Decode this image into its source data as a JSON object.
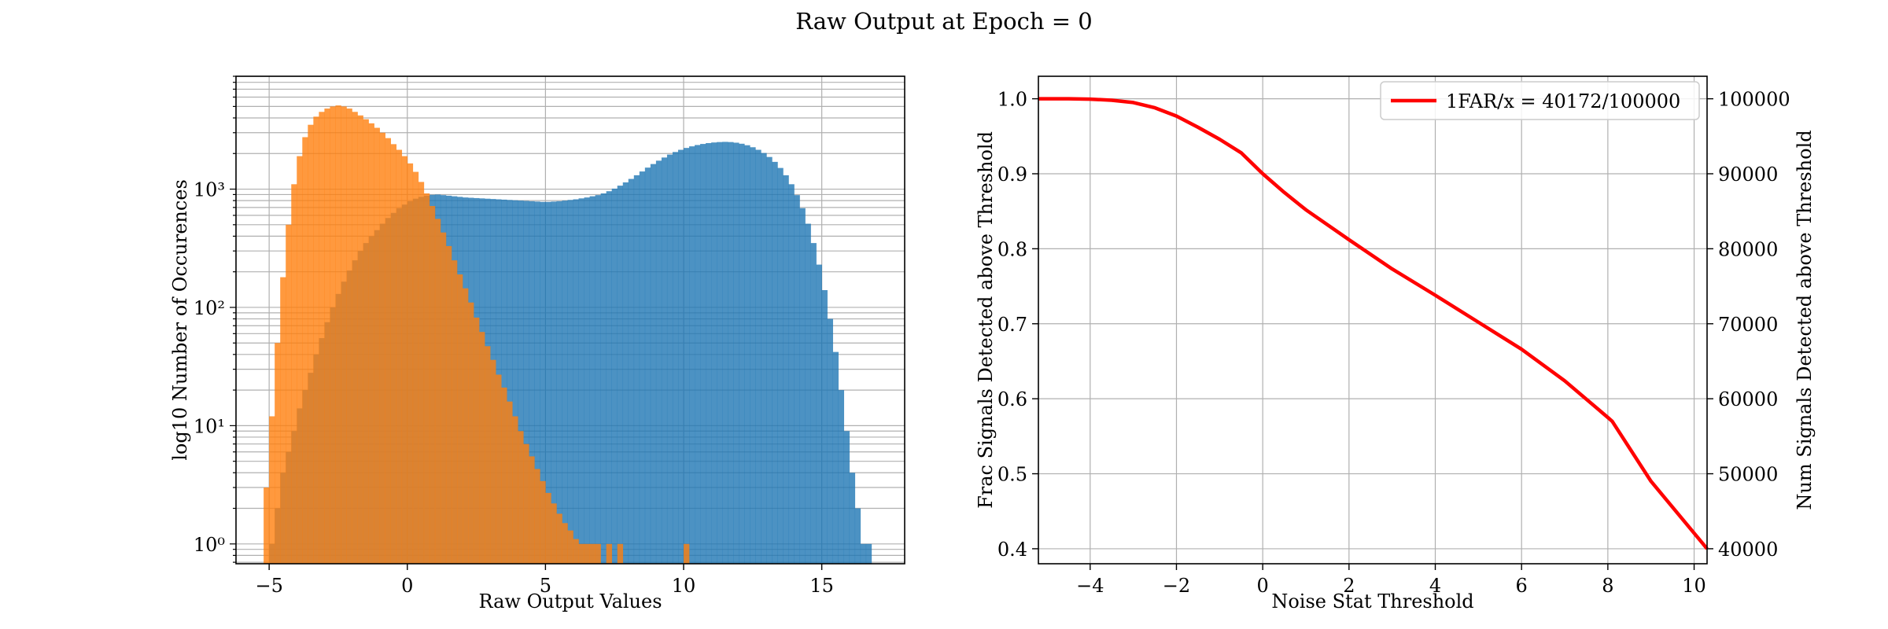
{
  "figure": {
    "title": "Raw Output at Epoch = 0"
  },
  "colors": {
    "signal": "#1f77b4",
    "noise": "#ff7f0e",
    "curve": "#ff0000",
    "grid": "#b0b0b0"
  },
  "chart_data": [
    {
      "type": "bar",
      "subtype": "histogram",
      "xlabel": "Raw Output Values",
      "ylabel": "log10 Number of Occurences",
      "xlim": [
        -6.2,
        18.0
      ],
      "ylim": [
        0.68,
        9000
      ],
      "yscale": "log",
      "grid": true,
      "x_ticks": [
        -5,
        0,
        5,
        10,
        15
      ],
      "x_tick_labels": [
        "−5",
        "0",
        "5",
        "10",
        "15"
      ],
      "y_ticks": [
        1,
        10,
        100,
        1000
      ],
      "y_tick_labels": [
        "10⁰",
        "10¹",
        "10²",
        "10³"
      ],
      "series": [
        {
          "color": "#1f77b4",
          "bin_width": 0.2,
          "bins": [
            [
              -5.0,
              1
            ],
            [
              -4.8,
              2
            ],
            [
              -4.6,
              4
            ],
            [
              -4.4,
              6
            ],
            [
              -4.2,
              9
            ],
            [
              -4.0,
              14
            ],
            [
              -3.8,
              20
            ],
            [
              -3.6,
              28
            ],
            [
              -3.4,
              40
            ],
            [
              -3.2,
              55
            ],
            [
              -3.0,
              75
            ],
            [
              -2.8,
              100
            ],
            [
              -2.6,
              130
            ],
            [
              -2.4,
              165
            ],
            [
              -2.2,
              205
            ],
            [
              -2.0,
              250
            ],
            [
              -1.8,
              300
            ],
            [
              -1.6,
              350
            ],
            [
              -1.4,
              400
            ],
            [
              -1.2,
              450
            ],
            [
              -1.0,
              510
            ],
            [
              -0.8,
              570
            ],
            [
              -0.6,
              630
            ],
            [
              -0.4,
              690
            ],
            [
              -0.2,
              740
            ],
            [
              0.0,
              790
            ],
            [
              0.2,
              830
            ],
            [
              0.4,
              860
            ],
            [
              0.6,
              880
            ],
            [
              0.8,
              895
            ],
            [
              1.0,
              900
            ],
            [
              1.2,
              890
            ],
            [
              1.4,
              880
            ],
            [
              1.6,
              870
            ],
            [
              1.8,
              860
            ],
            [
              2.0,
              850
            ],
            [
              2.2,
              845
            ],
            [
              2.4,
              840
            ],
            [
              2.6,
              835
            ],
            [
              2.8,
              830
            ],
            [
              3.0,
              825
            ],
            [
              3.2,
              820
            ],
            [
              3.4,
              815
            ],
            [
              3.6,
              810
            ],
            [
              3.8,
              805
            ],
            [
              4.0,
              800
            ],
            [
              4.2,
              795
            ],
            [
              4.4,
              790
            ],
            [
              4.6,
              785
            ],
            [
              4.8,
              780
            ],
            [
              5.0,
              780
            ],
            [
              5.2,
              785
            ],
            [
              5.4,
              790
            ],
            [
              5.6,
              800
            ],
            [
              5.8,
              810
            ],
            [
              6.0,
              820
            ],
            [
              6.2,
              835
            ],
            [
              6.4,
              850
            ],
            [
              6.6,
              870
            ],
            [
              6.8,
              890
            ],
            [
              7.0,
              920
            ],
            [
              7.2,
              960
            ],
            [
              7.4,
              1010
            ],
            [
              7.6,
              1070
            ],
            [
              7.8,
              1140
            ],
            [
              8.0,
              1220
            ],
            [
              8.2,
              1310
            ],
            [
              8.4,
              1410
            ],
            [
              8.6,
              1520
            ],
            [
              8.8,
              1630
            ],
            [
              9.0,
              1740
            ],
            [
              9.2,
              1850
            ],
            [
              9.4,
              1960
            ],
            [
              9.6,
              2060
            ],
            [
              9.8,
              2150
            ],
            [
              10.0,
              2230
            ],
            [
              10.2,
              2300
            ],
            [
              10.4,
              2360
            ],
            [
              10.6,
              2410
            ],
            [
              10.8,
              2450
            ],
            [
              11.0,
              2480
            ],
            [
              11.2,
              2500
            ],
            [
              11.4,
              2510
            ],
            [
              11.6,
              2500
            ],
            [
              11.8,
              2470
            ],
            [
              12.0,
              2420
            ],
            [
              12.2,
              2350
            ],
            [
              12.4,
              2260
            ],
            [
              12.6,
              2150
            ],
            [
              12.8,
              2020
            ],
            [
              13.0,
              1870
            ],
            [
              13.2,
              1700
            ],
            [
              13.4,
              1510
            ],
            [
              13.6,
              1310
            ],
            [
              13.8,
              1100
            ],
            [
              14.0,
              890
            ],
            [
              14.2,
              690
            ],
            [
              14.4,
              510
            ],
            [
              14.6,
              350
            ],
            [
              14.8,
              230
            ],
            [
              15.0,
              140
            ],
            [
              15.2,
              80
            ],
            [
              15.4,
              42
            ],
            [
              15.6,
              20
            ],
            [
              15.8,
              9
            ],
            [
              16.0,
              4
            ],
            [
              16.2,
              2
            ],
            [
              16.4,
              1
            ],
            [
              16.6,
              1
            ]
          ]
        },
        {
          "color": "#ff7f0e",
          "bin_width": 0.2,
          "bins": [
            [
              -5.2,
              3
            ],
            [
              -5.0,
              12
            ],
            [
              -4.8,
              50
            ],
            [
              -4.6,
              180
            ],
            [
              -4.4,
              500
            ],
            [
              -4.2,
              1100
            ],
            [
              -4.0,
              1900
            ],
            [
              -3.8,
              2750
            ],
            [
              -3.6,
              3500
            ],
            [
              -3.4,
              4100
            ],
            [
              -3.2,
              4500
            ],
            [
              -3.0,
              4800
            ],
            [
              -2.8,
              5000
            ],
            [
              -2.6,
              5100
            ],
            [
              -2.4,
              5000
            ],
            [
              -2.2,
              4800
            ],
            [
              -2.0,
              4500
            ],
            [
              -1.8,
              4200
            ],
            [
              -1.6,
              3900
            ],
            [
              -1.4,
              3600
            ],
            [
              -1.2,
              3300
            ],
            [
              -1.0,
              3000
            ],
            [
              -0.8,
              2700
            ],
            [
              -0.6,
              2400
            ],
            [
              -0.4,
              2150
            ],
            [
              -0.2,
              1900
            ],
            [
              0.0,
              1650
            ],
            [
              0.2,
              1400
            ],
            [
              0.4,
              1150
            ],
            [
              0.6,
              920
            ],
            [
              0.8,
              720
            ],
            [
              1.0,
              560
            ],
            [
              1.2,
              430
            ],
            [
              1.4,
              330
            ],
            [
              1.6,
              250
            ],
            [
              1.8,
              190
            ],
            [
              2.0,
              145
            ],
            [
              2.2,
              110
            ],
            [
              2.4,
              82
            ],
            [
              2.6,
              62
            ],
            [
              2.8,
              47
            ],
            [
              3.0,
              36
            ],
            [
              3.2,
              27
            ],
            [
              3.4,
              21
            ],
            [
              3.6,
              16
            ],
            [
              3.8,
              12
            ],
            [
              4.0,
              9
            ],
            [
              4.2,
              7
            ],
            [
              4.4,
              5.5
            ],
            [
              4.6,
              4.3
            ],
            [
              4.8,
              3.4
            ],
            [
              5.0,
              2.7
            ],
            [
              5.2,
              2.2
            ],
            [
              5.4,
              1.8
            ],
            [
              5.6,
              1.5
            ],
            [
              5.8,
              1.3
            ],
            [
              6.0,
              1.1
            ],
            [
              6.2,
              1
            ],
            [
              6.4,
              1
            ],
            [
              6.6,
              1
            ],
            [
              6.8,
              1
            ],
            [
              7.2,
              1
            ],
            [
              7.6,
              1
            ],
            [
              10.0,
              1
            ]
          ]
        }
      ]
    },
    {
      "type": "line",
      "xlabel": "Noise Stat Threshold",
      "ylabel": "Frac Signals Detected above Threshold",
      "ylabel_right": "Num Signals Detected above Threshold",
      "xlim": [
        -5.2,
        10.3
      ],
      "ylim": [
        0.38,
        1.03
      ],
      "y2lim": [
        38000,
        103000
      ],
      "grid": true,
      "legend_position": "top-right",
      "x_ticks": [
        -4,
        -2,
        0,
        2,
        4,
        6,
        8,
        10
      ],
      "x_tick_labels": [
        "−4",
        "−2",
        "0",
        "2",
        "4",
        "6",
        "8",
        "10"
      ],
      "y_ticks": [
        0.4,
        0.5,
        0.6,
        0.7,
        0.8,
        0.9,
        1.0
      ],
      "y_tick_labels": [
        "0.4",
        "0.5",
        "0.6",
        "0.7",
        "0.8",
        "0.9",
        "1.0"
      ],
      "y2_ticks": [
        40000,
        50000,
        60000,
        70000,
        80000,
        90000,
        100000
      ],
      "y2_tick_labels": [
        "40000",
        "50000",
        "60000",
        "70000",
        "80000",
        "90000",
        "100000"
      ],
      "series": [
        {
          "name": "1FAR/x = 40172/100000",
          "color": "#ff0000",
          "x": [
            -5.2,
            -4.5,
            -4.0,
            -3.5,
            -3.0,
            -2.5,
            -2.0,
            -1.5,
            -1.0,
            -0.5,
            0.0,
            0.5,
            1.0,
            2.0,
            3.0,
            4.0,
            5.0,
            6.0,
            7.0,
            8.0,
            8.1,
            9.0,
            10.3
          ],
          "y": [
            1.0,
            1.0,
            0.9995,
            0.998,
            0.995,
            0.988,
            0.977,
            0.962,
            0.946,
            0.928,
            0.9,
            0.875,
            0.852,
            0.812,
            0.773,
            0.738,
            0.702,
            0.666,
            0.624,
            0.575,
            0.57,
            0.49,
            0.4
          ]
        }
      ]
    }
  ]
}
